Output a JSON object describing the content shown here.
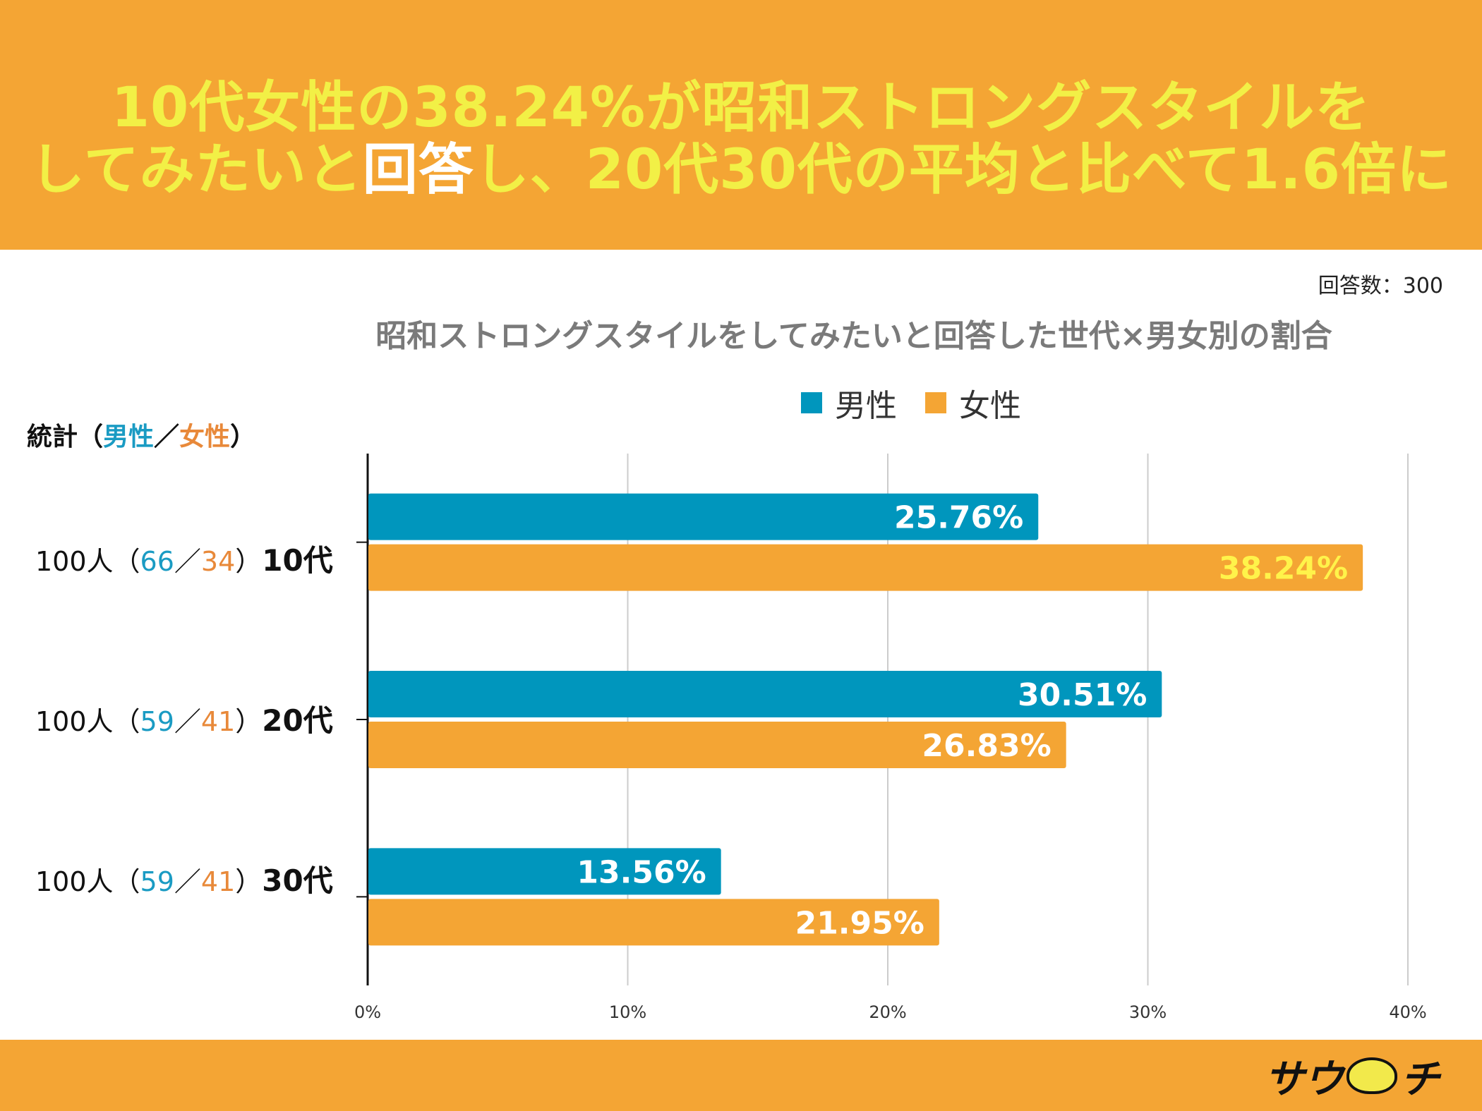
{
  "header": {
    "line1": "10代女性の38.24%が昭和ストロングスタイルを",
    "line2_a": "してみたいと",
    "line2_b": "回答",
    "line2_c": "し、20代30代の平均と比べて1.6倍に"
  },
  "respondents": "回答数：300",
  "stat_label": {
    "prefix": "統計（",
    "male": "男性",
    "sep": "／",
    "female": "女性",
    "suffix": "）"
  },
  "rows": [
    {
      "count": "100人（",
      "male_n": "66",
      "sep": "／",
      "female_n": "34",
      "close": "）",
      "age": "10代"
    },
    {
      "count": "100人（",
      "male_n": "59",
      "sep": "／",
      "female_n": "41",
      "close": "）",
      "age": "20代"
    },
    {
      "count": "100人（",
      "male_n": "59",
      "sep": "／",
      "female_n": "41",
      "close": "）",
      "age": "30代"
    }
  ],
  "colors": {
    "male": "#0096bd",
    "female": "#f4a534",
    "grid": "#cccccc",
    "highlight": "#fff34a"
  },
  "footer": {
    "logo_a": "サウ",
    "logo_b": "チ"
  },
  "chart_data": {
    "type": "bar",
    "orientation": "horizontal",
    "title": "昭和ストロングスタイルをしてみたいと回答した世代×男女別の割合",
    "categories": [
      "10代",
      "20代",
      "30代"
    ],
    "series": [
      {
        "name": "男性",
        "values": [
          25.76,
          30.51,
          13.56
        ],
        "labels": [
          "25.76%",
          "30.51%",
          "13.56%"
        ]
      },
      {
        "name": "女性",
        "values": [
          38.24,
          26.83,
          21.95
        ],
        "labels": [
          "38.24%",
          "26.83%",
          "21.95%"
        ]
      }
    ],
    "xlim": [
      0,
      40
    ],
    "xticks": [
      "0%",
      "10%",
      "20%",
      "30%",
      "40%"
    ],
    "grid": true,
    "legend": "top-center"
  }
}
